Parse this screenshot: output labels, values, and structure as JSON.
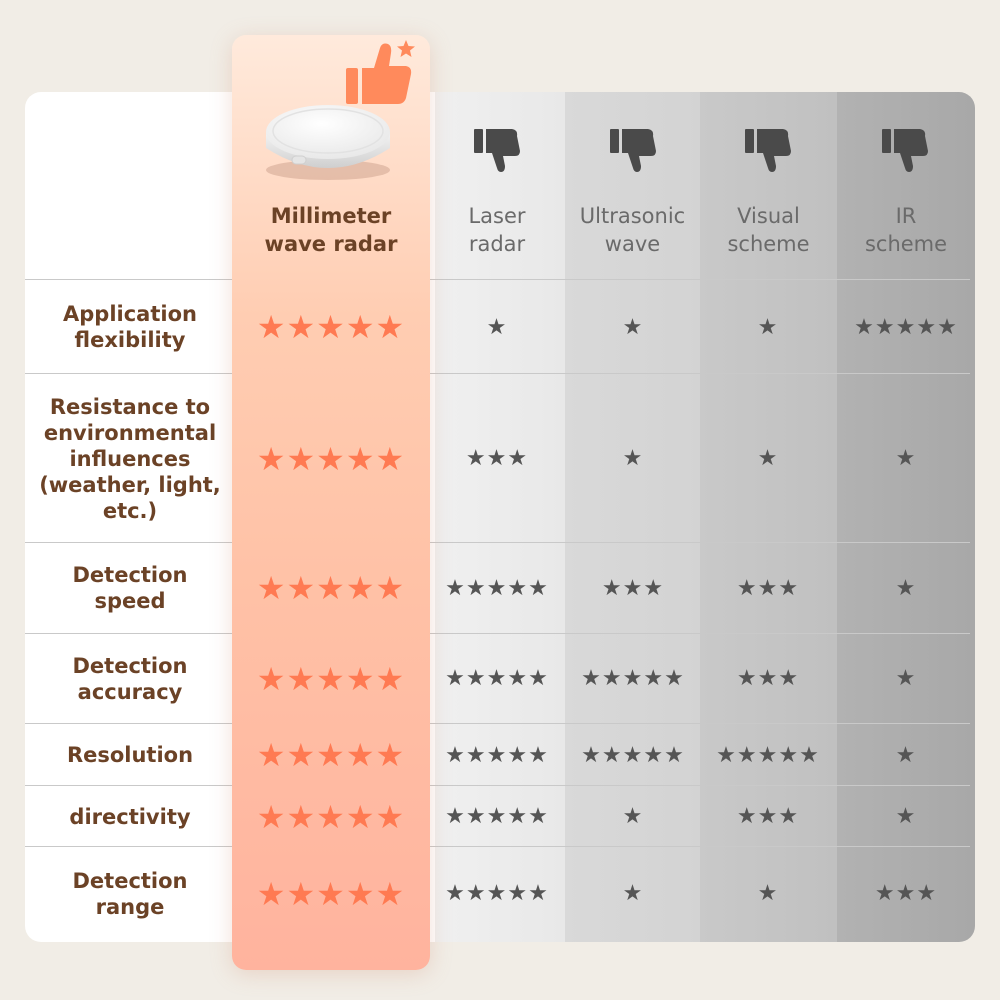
{
  "columns": [
    {
      "label": "Millimeter wave radar",
      "line1": "Millimeter",
      "line2": "wave radar",
      "verdict": "thumbs-up-icon"
    },
    {
      "label": "Laser radar",
      "line1": "Laser",
      "line2": "radar",
      "verdict": "thumbs-down-icon"
    },
    {
      "label": "Ultrasonic wave",
      "line1": "Ultrasonic",
      "line2": "wave",
      "verdict": "thumbs-down-icon"
    },
    {
      "label": "Visual scheme",
      "line1": "Visual",
      "line2": "scheme",
      "verdict": "thumbs-down-icon"
    },
    {
      "label": "IR scheme",
      "line1": "IR",
      "line2": "scheme",
      "verdict": "thumbs-down-icon"
    }
  ],
  "rows": [
    {
      "label": "Application flexibility",
      "lines": [
        "Application",
        "flexibility"
      ],
      "ratings": [
        5,
        1,
        1,
        1,
        5
      ]
    },
    {
      "label": "Resistance to environmental influences (weather, light, etc.)",
      "lines": [
        "Resistance to",
        "environmental",
        "influences",
        "(weather, light,",
        "etc.)"
      ],
      "ratings": [
        5,
        3,
        1,
        1,
        1
      ]
    },
    {
      "label": "Detection speed",
      "lines": [
        "Detection",
        "speed"
      ],
      "ratings": [
        5,
        5,
        3,
        3,
        1
      ]
    },
    {
      "label": "Detection accuracy",
      "lines": [
        "Detection",
        "accuracy"
      ],
      "ratings": [
        5,
        5,
        5,
        3,
        1
      ]
    },
    {
      "label": "Resolution",
      "lines": [
        "Resolution"
      ],
      "ratings": [
        5,
        5,
        5,
        5,
        1
      ]
    },
    {
      "label": "directivity",
      "lines": [
        "directivity"
      ],
      "ratings": [
        5,
        5,
        1,
        3,
        1
      ]
    },
    {
      "label": "Detection range",
      "lines": [
        "Detection",
        "range"
      ],
      "ratings": [
        5,
        5,
        1,
        1,
        3
      ]
    }
  ],
  "colors": {
    "highlight_star": "#ff7a52",
    "grey_star": "#555555",
    "label_brown": "#6b4226",
    "thumb_up": "#ff8a5c",
    "thumb_down": "#4a4a4a"
  },
  "icons": {
    "product": "radar-sensor-puck-icon",
    "up": "thumbs-up-icon",
    "down": "thumbs-down-icon",
    "sparkle": "star-icon",
    "rating": "star-icon"
  }
}
